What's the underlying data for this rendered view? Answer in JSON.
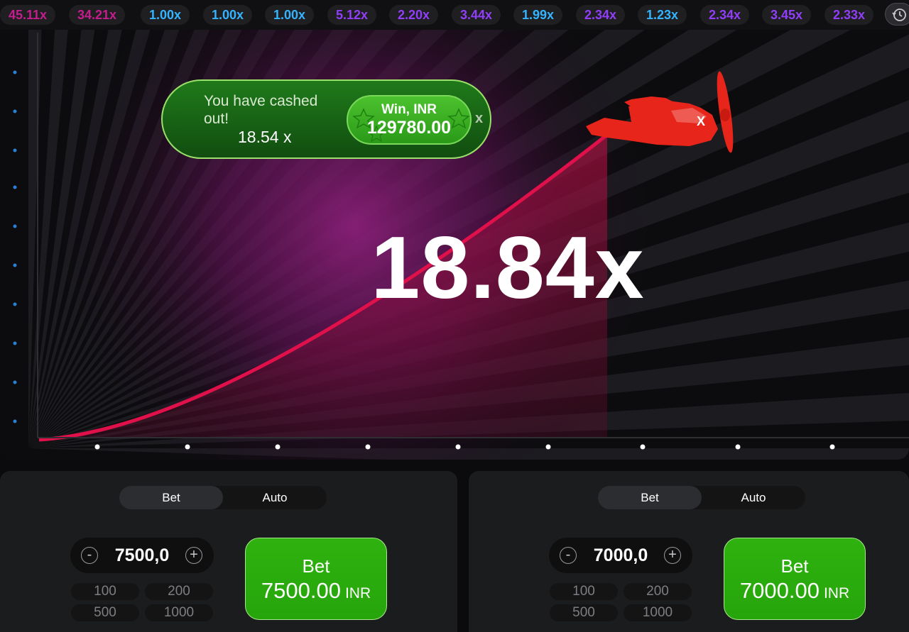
{
  "history": [
    {
      "value": "45.11x",
      "color": "#c41d8d"
    },
    {
      "value": "34.21x",
      "color": "#c41d8d"
    },
    {
      "value": "1.00x",
      "color": "#34b4ff"
    },
    {
      "value": "1.00x",
      "color": "#34b4ff"
    },
    {
      "value": "1.00x",
      "color": "#34b4ff"
    },
    {
      "value": "5.12x",
      "color": "#913ef8"
    },
    {
      "value": "2.20x",
      "color": "#913ef8"
    },
    {
      "value": "3.44x",
      "color": "#913ef8"
    },
    {
      "value": "1.99x",
      "color": "#34b4ff"
    },
    {
      "value": "2.34x",
      "color": "#913ef8"
    },
    {
      "value": "1.23x",
      "color": "#34b4ff"
    },
    {
      "value": "2.34x",
      "color": "#913ef8"
    },
    {
      "value": "3.45x",
      "color": "#913ef8"
    },
    {
      "value": "2.33x",
      "color": "#913ef8"
    }
  ],
  "history_button_icon": "history-clock-icon",
  "game": {
    "multiplier": "18.84x",
    "curve_color": "#e0104a",
    "plane_color": "#e8251a",
    "plane_icon": "plane-icon"
  },
  "cashout": {
    "message": "You have cashed out!",
    "multiplier": "18.54 x",
    "win_label": "Win, INR",
    "win_amount": "129780.00",
    "close_label": "x"
  },
  "panels": [
    {
      "tabs": {
        "bet": "Bet",
        "auto": "Auto",
        "active": "Bet"
      },
      "stake": "7500,0",
      "minus": "-",
      "plus": "+",
      "quick_amounts": [
        "100",
        "200",
        "500",
        "1000"
      ],
      "bet_button": {
        "label": "Bet",
        "amount": "7500.00",
        "currency": "INR"
      }
    },
    {
      "tabs": {
        "bet": "Bet",
        "auto": "Auto",
        "active": "Bet"
      },
      "stake": "7000,0",
      "minus": "-",
      "plus": "+",
      "quick_amounts": [
        "100",
        "200",
        "500",
        "1000"
      ],
      "bet_button": {
        "label": "Bet",
        "amount": "7000.00",
        "currency": "INR"
      }
    }
  ],
  "colors": {
    "accent_green": "#28a909",
    "background": "#0b0b0d",
    "panel": "#1b1c1d"
  }
}
